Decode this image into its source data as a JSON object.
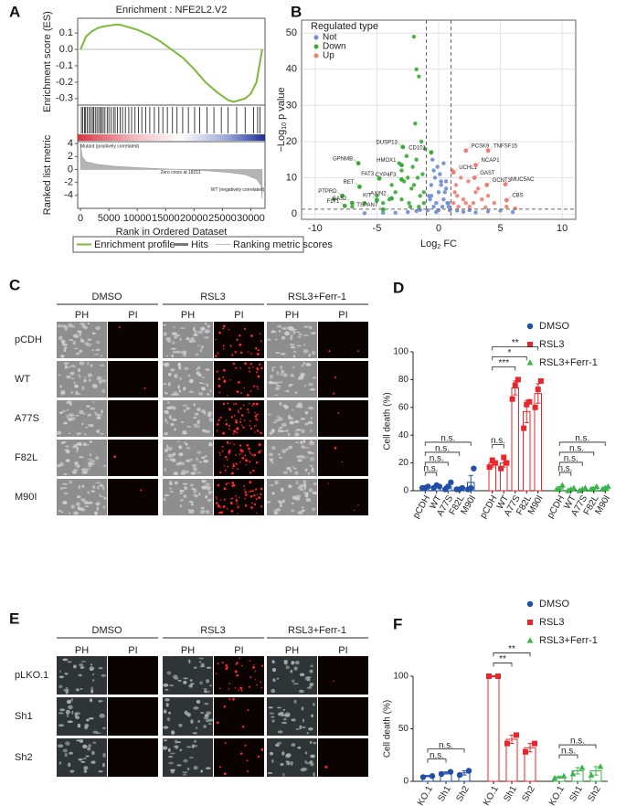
{
  "chart_data": [
    {
      "type": "gsea",
      "panel_label": "A",
      "title": "Enrichment : NFE2L2.V2",
      "ylabel": "Enrichment score (ES)",
      "ylabel2": "Ranked list metric",
      "xlabel": "Rank in Ordered Dataset",
      "x": [
        0,
        1000,
        2000,
        3000,
        4000,
        5000,
        6000,
        7000,
        8000,
        9000,
        10000,
        12000,
        14000,
        16000,
        18000,
        20000,
        22000,
        24000,
        26000,
        27000,
        28000,
        29000,
        30000,
        31000,
        31500,
        32000
      ],
      "values": [
        0,
        0.08,
        0.11,
        0.13,
        0.14,
        0.145,
        0.15,
        0.15,
        0.14,
        0.13,
        0.12,
        0.09,
        0.05,
        0.0,
        -0.05,
        -0.12,
        -0.2,
        -0.26,
        -0.31,
        -0.32,
        -0.31,
        -0.3,
        -0.27,
        -0.2,
        -0.1,
        0.0
      ],
      "color": "#7dba3a",
      "hits": [
        150,
        400,
        700,
        900,
        1200,
        1500,
        1800,
        2100,
        2300,
        2600,
        2900,
        3200,
        3500,
        3700,
        4000,
        4300,
        4700,
        5000,
        5400,
        5800,
        6100,
        6500,
        7000,
        7400,
        7900,
        8500,
        9000,
        9600,
        10200,
        10800,
        11500,
        12200,
        13000,
        13800,
        14500,
        15300,
        16200,
        17000,
        18000,
        19000,
        20100,
        21000,
        22300,
        23500,
        24800,
        26000,
        27500,
        29000,
        30500,
        31200,
        31600
      ],
      "metric_x": [
        0,
        300,
        1000,
        3000,
        6000,
        10000,
        14000,
        18211,
        22000,
        26000,
        29000,
        31000,
        31800,
        32000
      ],
      "metric_values": [
        4,
        2,
        1.2,
        0.8,
        0.5,
        0.3,
        0.12,
        0,
        -0.2,
        -0.45,
        -0.8,
        -1.5,
        -2.5,
        -4.5
      ],
      "xlim": [
        -500,
        32500
      ],
      "xticks": [
        0,
        5000,
        10000,
        15000,
        20000,
        25000,
        30000
      ],
      "ylim": [
        -0.34,
        0.19
      ],
      "yticks": [
        0.1,
        {
          "value": 0,
          "label": "0.0"
        },
        -0.1,
        -0.2,
        -0.3
      ],
      "y2lim": [
        -6,
        4.3
      ],
      "y2ticks": [
        4,
        2,
        0,
        -2,
        -4
      ],
      "annotations": [
        "Mutant (positively correlated)",
        "Zero cross at 18211",
        "WT (negatively correlated)"
      ],
      "legend": [
        {
          "name": "Enrichment profile",
          "color": "#7dba3a"
        },
        {
          "name": "Hits",
          "color": "#777777"
        },
        {
          "name": "Ranking metric scores",
          "color": "#bbbbbb"
        }
      ]
    },
    {
      "type": "scatter",
      "panel_label": "B",
      "xlabel_parts": [
        "Log",
        "2",
        " FC"
      ],
      "ylabel_parts": [
        "−Log",
        "10",
        " p value"
      ],
      "xlim": [
        -11.1,
        11.1
      ],
      "xticks": [
        -10,
        -5,
        0,
        5,
        10
      ],
      "ylim": [
        -1.5,
        53.6
      ],
      "yticks": [
        0,
        10,
        20,
        30,
        40,
        50
      ],
      "grid": true,
      "thresholds": {
        "x": [
          -1,
          1
        ],
        "y": 1.3
      },
      "legend_title": "Regulated type",
      "series": [
        {
          "name": "Not",
          "color": "#6f8ccf",
          "x": [
            -0.8,
            -0.6,
            -0.4,
            -0.2,
            0,
            0.2,
            0.4,
            0.6,
            0.8,
            -0.9,
            -0.5,
            -0.3,
            0.1,
            0.3,
            0.5,
            0.7,
            0.9,
            -0.7,
            -0.1,
            0.6,
            -0.4,
            0.2,
            -2.5,
            -3.5,
            -1.8,
            2.0,
            3.0,
            4.0,
            5.0,
            6.0,
            -4.5,
            -6,
            0.0,
            -0.2,
            0.4,
            -0.6,
            0.8,
            1.5,
            2.5,
            -1.5
          ],
          "values": [
            5,
            8,
            12,
            3,
            6,
            9,
            4,
            7,
            2,
            1,
            15,
            10,
            11,
            2,
            6,
            3,
            1,
            4,
            13,
            9,
            2,
            8,
            0.5,
            0.3,
            0.8,
            0.6,
            0.4,
            0.7,
            0.9,
            0.5,
            0.3,
            0.2,
            1,
            0.5,
            14,
            5,
            3,
            0.9,
            1.0,
            1.1
          ]
        },
        {
          "name": "Down",
          "color": "#3aaa35",
          "x": [
            -1.5,
            -2,
            -2.5,
            -3,
            -1.2,
            -1.8,
            -2.2,
            -3.5,
            -4,
            -1.4,
            -2.8,
            -1.1,
            -1.6,
            -2.4,
            -3.2,
            -5,
            -6,
            -7,
            -1.3,
            -2.6,
            -3.8,
            -4.5,
            -1.9,
            -2.1,
            -1.2,
            -3.0,
            -2.3,
            -1.7,
            -8.5,
            -2.0,
            -1.8,
            -1.6
          ],
          "values": [
            5,
            8,
            10,
            12,
            3,
            15,
            7,
            6,
            4,
            20,
            9,
            18,
            2,
            3,
            14,
            5,
            3,
            2,
            11,
            16,
            8,
            3,
            25,
            13,
            6,
            4,
            2,
            10,
            4,
            49,
            40,
            38
          ]
        },
        {
          "name": "Up",
          "color": "#f07b72",
          "x": [
            1.2,
            1.5,
            2,
            2.5,
            3,
            1.4,
            1.8,
            2.2,
            3.5,
            4,
            1.1,
            1.6,
            2.8,
            3.2,
            4.5,
            5.5,
            6.2,
            1.3,
            2.4,
            3.8
          ],
          "values": [
            3,
            5,
            4,
            2,
            6,
            8,
            10,
            3,
            4,
            5,
            12,
            2,
            3,
            7,
            3,
            2,
            1.5,
            6,
            9,
            1.8
          ]
        }
      ],
      "annotations": [
        {
          "label": "DUSP13",
          "x": -2.9,
          "y": 18.5,
          "series": "Down"
        },
        {
          "label": "GPNMB",
          "x": -6.5,
          "y": 14,
          "series": "Down"
        },
        {
          "label": "HMOX1",
          "x": -3.0,
          "y": 13.5,
          "series": "Down"
        },
        {
          "label": "FAT3",
          "x": -4.8,
          "y": 9.8,
          "series": "Down"
        },
        {
          "label": "CYP4F3",
          "x": -3.0,
          "y": 9.5,
          "series": "Down"
        },
        {
          "label": "RET",
          "x": -6.4,
          "y": 7.5,
          "series": "Down"
        },
        {
          "label": "PTPRD",
          "x": -7.8,
          "y": 5,
          "series": "Down"
        },
        {
          "label": "KIT",
          "x": -5.0,
          "y": 3.8,
          "series": "Down"
        },
        {
          "label": "AXIN2",
          "x": -3.8,
          "y": 4.3,
          "series": "Down"
        },
        {
          "label": "FLT1",
          "x": -7.6,
          "y": 2.2,
          "series": "Down"
        },
        {
          "label": "GAS2",
          "x": -7.0,
          "y": 3,
          "series": "Down"
        },
        {
          "label": "TSPAN7",
          "x": -4.5,
          "y": 1.2,
          "series": "Down"
        },
        {
          "label": "CD101",
          "x": -0.6,
          "y": 17,
          "series": "Down"
        },
        {
          "label": "UCHL1",
          "x": 1.2,
          "y": 11.5,
          "series": "Up"
        },
        {
          "label": "PCSK9",
          "x": 2.2,
          "y": 17.5,
          "series": "Up"
        },
        {
          "label": "TNFSF15",
          "x": 4.0,
          "y": 17.5,
          "series": "Up"
        },
        {
          "label": "NCAP1",
          "x": 3.0,
          "y": 13.5,
          "series": "Up"
        },
        {
          "label": "GAST",
          "x": 2.9,
          "y": 10,
          "series": "Up"
        },
        {
          "label": "GCNT3",
          "x": 3.9,
          "y": 8,
          "series": "Up"
        },
        {
          "label": "MUC5AC",
          "x": 5.4,
          "y": 8.2,
          "series": "Up"
        },
        {
          "label": "CBS",
          "x": 5.5,
          "y": 3.8,
          "series": "Up"
        }
      ]
    },
    {
      "type": "bar",
      "panel_label": "D",
      "ylabel": "Cell death (%)",
      "ylim": [
        0,
        100
      ],
      "yticks": [
        0,
        20,
        40,
        60,
        80,
        100
      ],
      "series": [
        {
          "name": "DMSO",
          "color": "#1f4fa8",
          "marker": "circle",
          "categories": [
            "pCDH",
            "WT",
            "A77S",
            "F82L",
            "M90I"
          ],
          "values": [
            2,
            3,
            3,
            1,
            6
          ],
          "errors": [
            0.5,
            0.8,
            1.5,
            0.5,
            5
          ],
          "replicates": [
            [
              2,
              2,
              3
            ],
            [
              2,
              4,
              3
            ],
            [
              1,
              3,
              6
            ],
            [
              1,
              1,
              2
            ],
            [
              1,
              2,
              16
            ]
          ]
        },
        {
          "name": "RSL3",
          "color": "#e8262b",
          "marker": "square",
          "categories": [
            "pCDH",
            "WT",
            "A77S",
            "F82L",
            "M90I"
          ],
          "values": [
            20,
            20,
            74,
            57,
            70
          ],
          "errors": [
            3,
            3,
            5,
            8,
            7
          ],
          "replicates": [
            [
              17,
              22,
              20
            ],
            [
              16,
              24,
              20
            ],
            [
              66,
              76,
              80
            ],
            [
              45,
              62,
              64
            ],
            [
              60,
              73,
              79
            ]
          ]
        },
        {
          "name": "RSL3+Ferr-1",
          "color": "#3db44a",
          "marker": "triangle",
          "categories": [
            "pCDH",
            "WT",
            "A77S",
            "F82L",
            "M90I"
          ],
          "values": [
            2,
            1,
            1,
            2,
            2
          ],
          "errors": [
            1,
            0.5,
            0.5,
            0.6,
            0.6
          ],
          "replicates": [
            [
              1,
              1,
              4
            ],
            [
              0,
              1,
              2
            ],
            [
              0,
              1,
              2
            ],
            [
              1,
              1,
              3
            ],
            [
              1,
              2,
              3
            ]
          ]
        }
      ],
      "comparisons": [
        {
          "series": "DMSO",
          "from": "pCDH",
          "to": "WT",
          "label": "n.s."
        },
        {
          "series": "DMSO",
          "from": "pCDH",
          "to": "A77S",
          "label": "n.s."
        },
        {
          "series": "DMSO",
          "from": "pCDH",
          "to": "F82L",
          "label": "n.s."
        },
        {
          "series": "DMSO",
          "from": "pCDH",
          "to": "M90I",
          "label": "n.s."
        },
        {
          "series": "RSL3",
          "from": "pCDH",
          "to": "WT",
          "label": "n.s."
        },
        {
          "series": "RSL3",
          "from": "pCDH",
          "to": "A77S",
          "label": "***"
        },
        {
          "series": "RSL3",
          "from": "pCDH",
          "to": "F82L",
          "label": "*"
        },
        {
          "series": "RSL3",
          "from": "pCDH",
          "to": "M90I",
          "label": "**"
        },
        {
          "series": "RSL3+Ferr-1",
          "from": "pCDH",
          "to": "WT",
          "label": "n.s."
        },
        {
          "series": "RSL3+Ferr-1",
          "from": "pCDH",
          "to": "A77S",
          "label": "n.s."
        },
        {
          "series": "RSL3+Ferr-1",
          "from": "pCDH",
          "to": "F82L",
          "label": "n.s."
        },
        {
          "series": "RSL3+Ferr-1",
          "from": "pCDH",
          "to": "M90I",
          "label": "n.s."
        }
      ]
    },
    {
      "type": "bar",
      "panel_label": "F",
      "ylabel": "Cell death (%)",
      "ylim": [
        0,
        100
      ],
      "yticks": [
        0,
        50,
        100
      ],
      "series": [
        {
          "name": "DMSO",
          "color": "#1f4fa8",
          "marker": "circle",
          "categories": [
            "pLKO.1",
            "Sh1",
            "Sh2"
          ],
          "values": [
            5,
            8,
            8
          ],
          "errors": [
            0.5,
            1,
            2
          ],
          "replicates": [
            [
              4,
              5
            ],
            [
              7,
              9
            ],
            [
              6,
              10
            ]
          ]
        },
        {
          "name": "RSL3",
          "color": "#e8262b",
          "marker": "square",
          "categories": [
            "pLKO.1",
            "Sh1",
            "Sh2"
          ],
          "values": [
            100,
            40,
            32
          ],
          "errors": [
            0.5,
            4,
            4
          ],
          "replicates": [
            [
              100,
              100
            ],
            [
              36,
              44
            ],
            [
              28,
              36
            ]
          ]
        },
        {
          "name": "RSL3+Ferr-1",
          "color": "#3db44a",
          "marker": "triangle",
          "categories": [
            "pLKO.1",
            "Sh1",
            "Sh2"
          ],
          "values": [
            4,
            10,
            10
          ],
          "errors": [
            1,
            3,
            4
          ],
          "replicates": [
            [
              3,
              5
            ],
            [
              7,
              13
            ],
            [
              6,
              14
            ]
          ]
        }
      ],
      "comparisons": [
        {
          "series": "DMSO",
          "from": "pLKO.1",
          "to": "Sh1",
          "label": "n.s."
        },
        {
          "series": "DMSO",
          "from": "pLKO.1",
          "to": "Sh2",
          "label": "n.s."
        },
        {
          "series": "RSL3",
          "from": "pLKO.1",
          "to": "Sh1",
          "label": "**"
        },
        {
          "series": "RSL3",
          "from": "pLKO.1",
          "to": "Sh2",
          "label": "**"
        },
        {
          "series": "RSL3+Ferr-1",
          "from": "pLKO.1",
          "to": "Sh1",
          "label": "n.s."
        },
        {
          "series": "RSL3+Ferr-1",
          "from": "pLKO.1",
          "to": "Sh2",
          "label": "n.s."
        }
      ]
    }
  ],
  "image_panels": [
    {
      "panel_label": "C",
      "conditions": [
        "DMSO",
        "RSL3",
        "RSL3+Ferr-1"
      ],
      "channels": [
        "PH",
        "PI"
      ],
      "rows": [
        "pCDH",
        "WT",
        "A77S",
        "F82L",
        "M90I"
      ]
    },
    {
      "panel_label": "E",
      "conditions": [
        "DMSO",
        "RSL3",
        "RSL3+Ferr-1"
      ],
      "channels": [
        "PH",
        "PI"
      ],
      "rows": [
        "pLKO.1",
        "Sh1",
        "Sh2"
      ]
    }
  ]
}
